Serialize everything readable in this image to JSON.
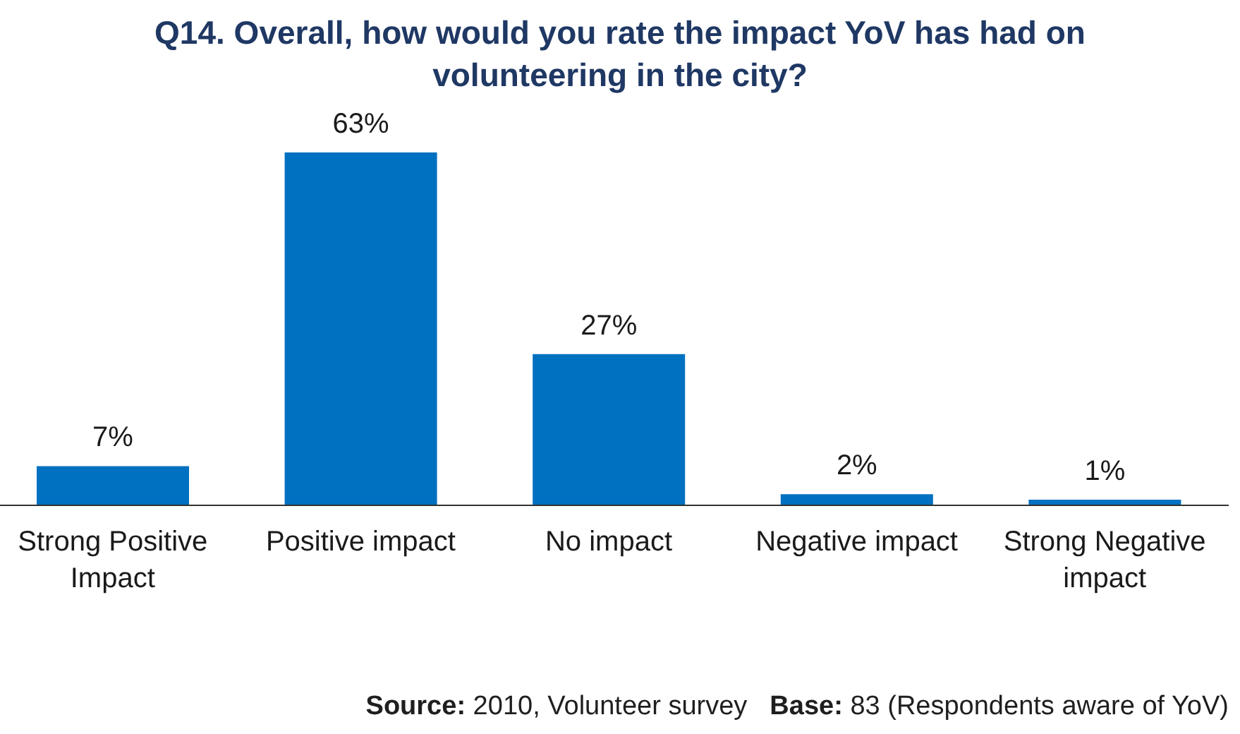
{
  "chart_data": {
    "type": "bar",
    "title": "Q14. Overall, how would you rate the impact YoV has had on volunteering in the city?",
    "categories": [
      "Strong Positive Impact",
      "Positive impact",
      "No impact",
      "Negative impact",
      "Strong Negative impact"
    ],
    "values": [
      7,
      63,
      27,
      2,
      1
    ],
    "value_labels": [
      "7%",
      "63%",
      "27%",
      "2%",
      "1%"
    ],
    "color": "#0070c0",
    "grid": false,
    "legend": false,
    "annotations": [
      "Source: 2010, Volunteer survey",
      "Base: 83 (Respondents aware of YoV)"
    ]
  }
}
